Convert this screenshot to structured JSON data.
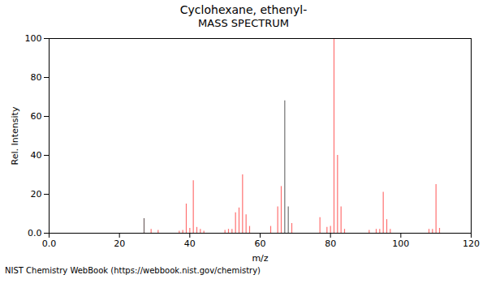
{
  "chart_data": {
    "type": "spectrum",
    "title": "Cyclohexane, ethenyl-",
    "subtitle": "MASS SPECTRUM",
    "x_label": "m/z",
    "y_label": "Rel. Intensity",
    "annotations": [
      "NIST Chemistry WebBook (https://webbook.nist.gov/chemistry)"
    ],
    "xlim": [
      0.0,
      120
    ],
    "ylim": [
      0.0,
      100
    ],
    "xticks": [
      {
        "value": 0,
        "label": "0.0"
      },
      20,
      40,
      60,
      80,
      100,
      120
    ],
    "yticks": [
      {
        "value": 0,
        "label": "0.0"
      },
      20,
      40,
      60,
      80,
      100
    ],
    "grid": false,
    "series": [
      {
        "color": "#ff7070",
        "x": [
          27,
          29,
          31,
          37,
          38,
          39,
          40,
          41,
          42,
          43,
          44,
          50,
          51,
          52,
          53,
          54,
          55,
          56,
          57,
          63,
          65,
          66,
          69,
          77,
          79,
          80,
          81,
          82,
          83,
          84,
          91,
          93,
          94,
          95,
          96,
          97,
          108,
          109,
          110,
          111
        ],
        "values": [
          7.5,
          2.0,
          1.5,
          1.0,
          1.5,
          15.0,
          2.5,
          27.0,
          3.0,
          2.0,
          1.0,
          1.5,
          2.0,
          2.0,
          10.5,
          13.0,
          30.0,
          9.5,
          3.5,
          3.5,
          13.5,
          24.0,
          5.0,
          8.0,
          3.0,
          3.5,
          100.0,
          40.0,
          13.5,
          2.0,
          1.5,
          2.0,
          2.0,
          21.0,
          7.0,
          2.0,
          2.0,
          2.0,
          25.0,
          2.5
        ]
      },
      {
        "color": "#707070",
        "x": [
          27,
          67,
          68
        ],
        "values": [
          7.5,
          68.0,
          13.5
        ]
      }
    ]
  }
}
